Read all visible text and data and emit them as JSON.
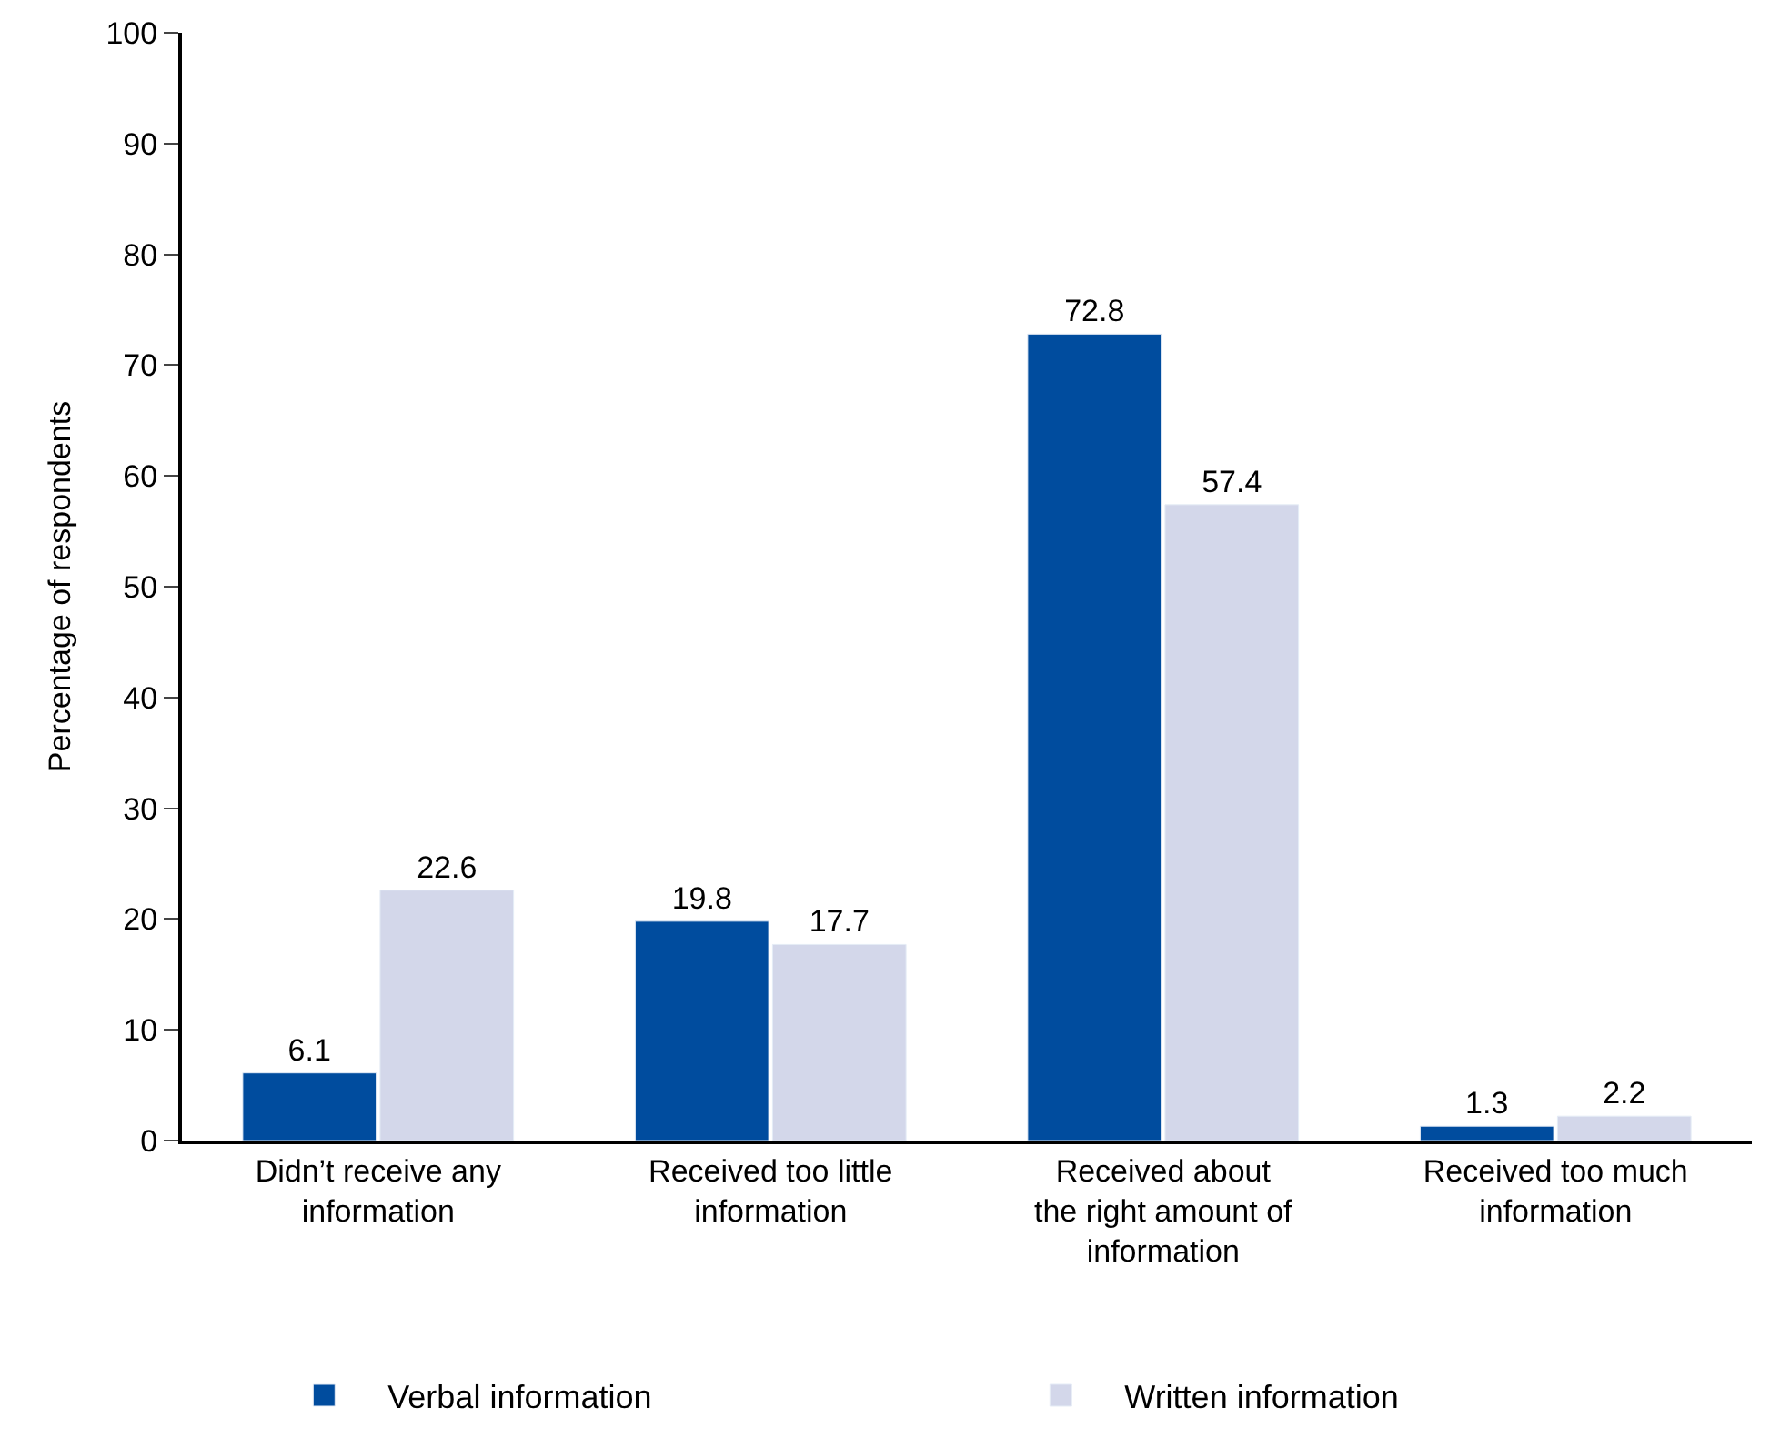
{
  "chart_data": {
    "type": "bar",
    "ylabel": "Percentage of respondents",
    "categories": [
      "Didn’t receive any\ninformation",
      "Received too little\ninformation",
      "Received about\nthe right amount of\ninformation",
      "Received too much\ninformation"
    ],
    "series": [
      {
        "name": "Verbal information",
        "color": "#004c9e",
        "values": [
          6.1,
          19.8,
          72.8,
          1.3
        ]
      },
      {
        "name": "Written information",
        "color": "#d3d7ea",
        "values": [
          22.6,
          17.7,
          57.4,
          2.2
        ]
      }
    ],
    "ylim": [
      0,
      100
    ],
    "yticks": [
      0,
      10,
      20,
      30,
      40,
      50,
      60,
      70,
      80,
      90,
      100
    ],
    "data_labels": true,
    "legend": "bottom"
  }
}
